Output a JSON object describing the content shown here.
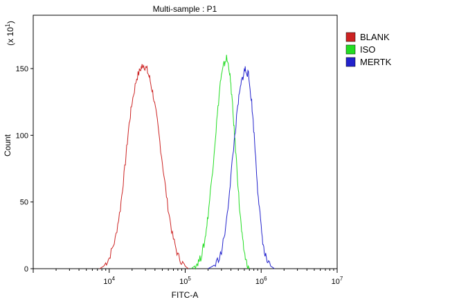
{
  "chart_data": {
    "type": "line",
    "title": "Multi-sample : P1",
    "xlabel": "FITC-A",
    "ylabel": "Count",
    "y_multiplier_label": "(x 10",
    "y_multiplier_exp": "1",
    "x_scale": "log",
    "xlim": [
      1000,
      10000000
    ],
    "ylim": [
      0,
      190
    ],
    "y_ticks": [
      0,
      50,
      100,
      150
    ],
    "x_ticks": [
      {
        "value": 10000,
        "base": "10",
        "exp": "4"
      },
      {
        "value": 100000,
        "base": "10",
        "exp": "5"
      },
      {
        "value": 1000000,
        "base": "10",
        "exp": "6"
      },
      {
        "value": 10000000,
        "base": "10",
        "exp": "7"
      }
    ],
    "legend_position": "top-right",
    "series": [
      {
        "name": "BLANK",
        "color": "#cc2222",
        "peak_x": 28000,
        "peak_y": 153,
        "x_range": [
          7500,
          110000
        ],
        "points": [
          [
            7500,
            0
          ],
          [
            8500,
            2
          ],
          [
            10000,
            8
          ],
          [
            12000,
            22
          ],
          [
            14000,
            45
          ],
          [
            16000,
            75
          ],
          [
            18000,
            105
          ],
          [
            20000,
            125
          ],
          [
            23000,
            143
          ],
          [
            26000,
            150
          ],
          [
            28000,
            153
          ],
          [
            31000,
            150
          ],
          [
            34000,
            143
          ],
          [
            38000,
            130
          ],
          [
            43000,
            110
          ],
          [
            50000,
            80
          ],
          [
            58000,
            50
          ],
          [
            68000,
            25
          ],
          [
            80000,
            10
          ],
          [
            95000,
            3
          ],
          [
            110000,
            0
          ]
        ]
      },
      {
        "name": "ISO",
        "color": "#22dd22",
        "peak_x": 350000,
        "peak_y": 158,
        "x_range": [
          120000,
          700000
        ],
        "points": [
          [
            120000,
            0
          ],
          [
            140000,
            3
          ],
          [
            160000,
            8
          ],
          [
            180000,
            20
          ],
          [
            200000,
            40
          ],
          [
            230000,
            75
          ],
          [
            260000,
            110
          ],
          [
            290000,
            140
          ],
          [
            320000,
            152
          ],
          [
            350000,
            158
          ],
          [
            380000,
            150
          ],
          [
            410000,
            130
          ],
          [
            440000,
            105
          ],
          [
            480000,
            75
          ],
          [
            520000,
            45
          ],
          [
            570000,
            20
          ],
          [
            630000,
            6
          ],
          [
            700000,
            0
          ]
        ]
      },
      {
        "name": "MERTK",
        "color": "#2222cc",
        "peak_x": 620000,
        "peak_y": 150,
        "x_range": [
          200000,
          1500000
        ],
        "points": [
          [
            200000,
            0
          ],
          [
            250000,
            3
          ],
          [
            300000,
            12
          ],
          [
            350000,
            35
          ],
          [
            400000,
            70
          ],
          [
            450000,
            100
          ],
          [
            500000,
            125
          ],
          [
            550000,
            140
          ],
          [
            600000,
            148
          ],
          [
            620000,
            150
          ],
          [
            680000,
            145
          ],
          [
            750000,
            125
          ],
          [
            820000,
            95
          ],
          [
            900000,
            60
          ],
          [
            1000000,
            30
          ],
          [
            1100000,
            12
          ],
          [
            1250000,
            3
          ],
          [
            1500000,
            0
          ]
        ]
      }
    ]
  }
}
